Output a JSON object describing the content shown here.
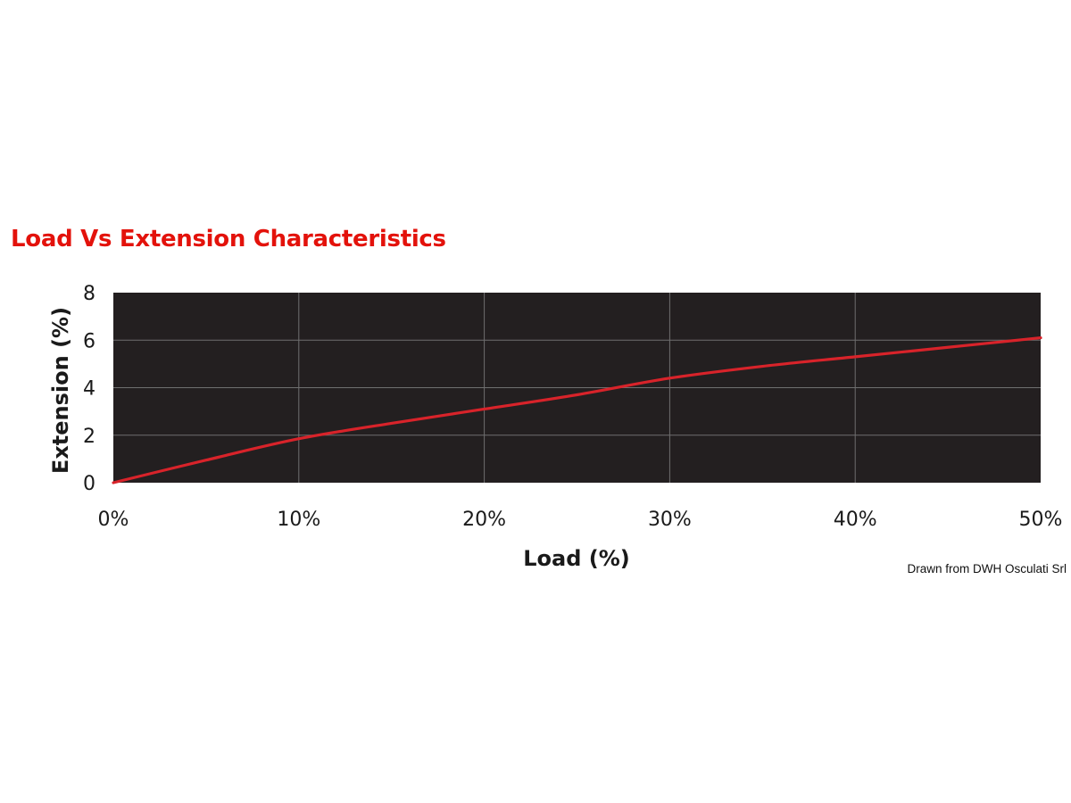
{
  "chart_data": {
    "type": "line",
    "title": "Load Vs Extension Characteristics",
    "xlabel": "Load (%)",
    "ylabel": "Extension (%)",
    "x_ticks": [
      "0%",
      "10%",
      "20%",
      "30%",
      "40%",
      "50%"
    ],
    "y_ticks": [
      "0",
      "2",
      "4",
      "6",
      "8"
    ],
    "xlim": [
      0,
      50
    ],
    "ylim": [
      0,
      8
    ],
    "grid": true,
    "background_color": "#231f20",
    "grid_color": "#6f6f6f",
    "title_color": "#e3120b",
    "series": [
      {
        "color": "#d8232a",
        "x": [
          0,
          5,
          10,
          15,
          20,
          25,
          30,
          35,
          40,
          45,
          50
        ],
        "y": [
          0,
          0.95,
          1.85,
          2.5,
          3.1,
          3.7,
          4.4,
          4.9,
          5.3,
          5.7,
          6.1
        ]
      }
    ]
  },
  "source_note": "Drawn from DWH Osculati Srl"
}
